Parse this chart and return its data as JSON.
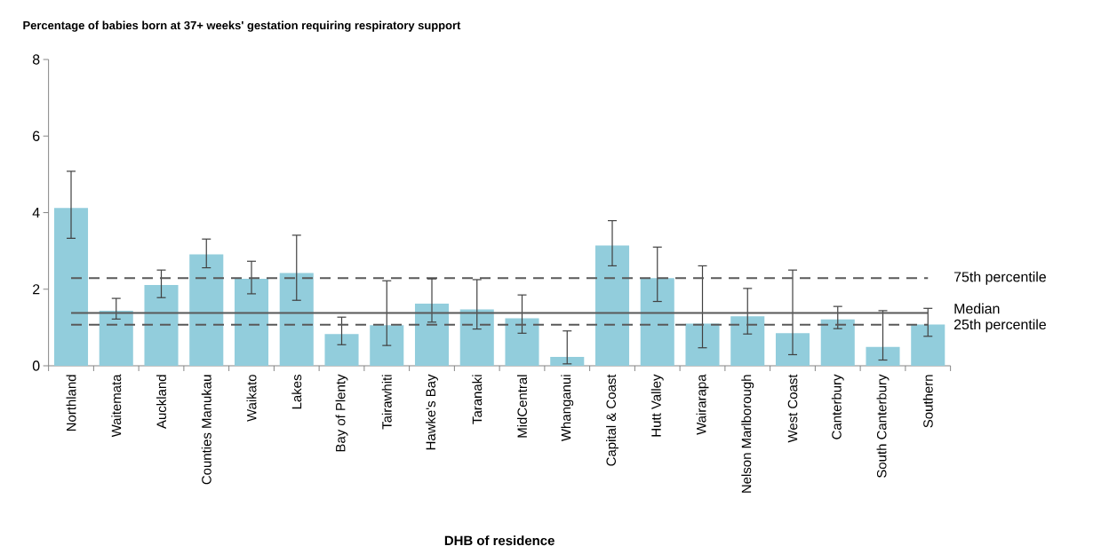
{
  "chart_data": {
    "type": "bar",
    "title": "Percentage of babies born at 37+ weeks' gestation requiring respiratory support",
    "xlabel": "DHB of residence",
    "categories": [
      "Northland",
      "Waitemata",
      "Auckland",
      "Counties Manukau",
      "Waikato",
      "Lakes",
      "Bay of Plenty",
      "Tairawhiti",
      "Hawke's Bay",
      "Taranaki",
      "MidCentral",
      "Whanganui",
      "Capital & Coast",
      "Hutt Valley",
      "Wairarapa",
      "Nelson Marlborough",
      "West Coast",
      "Canterbury",
      "South Canterbury",
      "Southern"
    ],
    "values": [
      4.12,
      1.44,
      2.11,
      2.91,
      2.27,
      2.42,
      0.83,
      1.06,
      1.62,
      1.47,
      1.24,
      0.23,
      3.14,
      2.29,
      1.1,
      1.29,
      0.85,
      1.21,
      0.49,
      1.08
    ],
    "errors": [
      [
        3.33,
        5.08
      ],
      [
        1.22,
        1.76
      ],
      [
        1.78,
        2.5
      ],
      [
        2.56,
        3.31
      ],
      [
        1.88,
        2.73
      ],
      [
        1.71,
        3.41
      ],
      [
        0.55,
        1.27
      ],
      [
        0.53,
        2.22
      ],
      [
        1.14,
        2.27
      ],
      [
        0.96,
        2.25
      ],
      [
        0.85,
        1.85
      ],
      [
        0.05,
        0.91
      ],
      [
        2.61,
        3.79
      ],
      [
        1.68,
        3.1
      ],
      [
        0.47,
        2.61
      ],
      [
        0.83,
        2.02
      ],
      [
        0.29,
        2.5
      ],
      [
        0.97,
        1.55
      ],
      [
        0.15,
        1.44
      ],
      [
        0.77,
        1.5
      ]
    ],
    "color": "#92cddc",
    "ylim": [
      0,
      8
    ],
    "yticks": [
      0,
      2,
      4,
      6,
      8
    ],
    "grid": false,
    "ref_lines": [
      {
        "axis": "y",
        "value": 2.29,
        "label": "75th percentile",
        "line_style": "dashed",
        "color": "#595959"
      },
      {
        "axis": "y",
        "value": 1.38,
        "label": "Median",
        "line_style": "solid",
        "color": "#595959"
      },
      {
        "axis": "y",
        "value": 1.07,
        "label": "25th percentile",
        "line_style": "dashed",
        "color": "#595959"
      }
    ]
  }
}
